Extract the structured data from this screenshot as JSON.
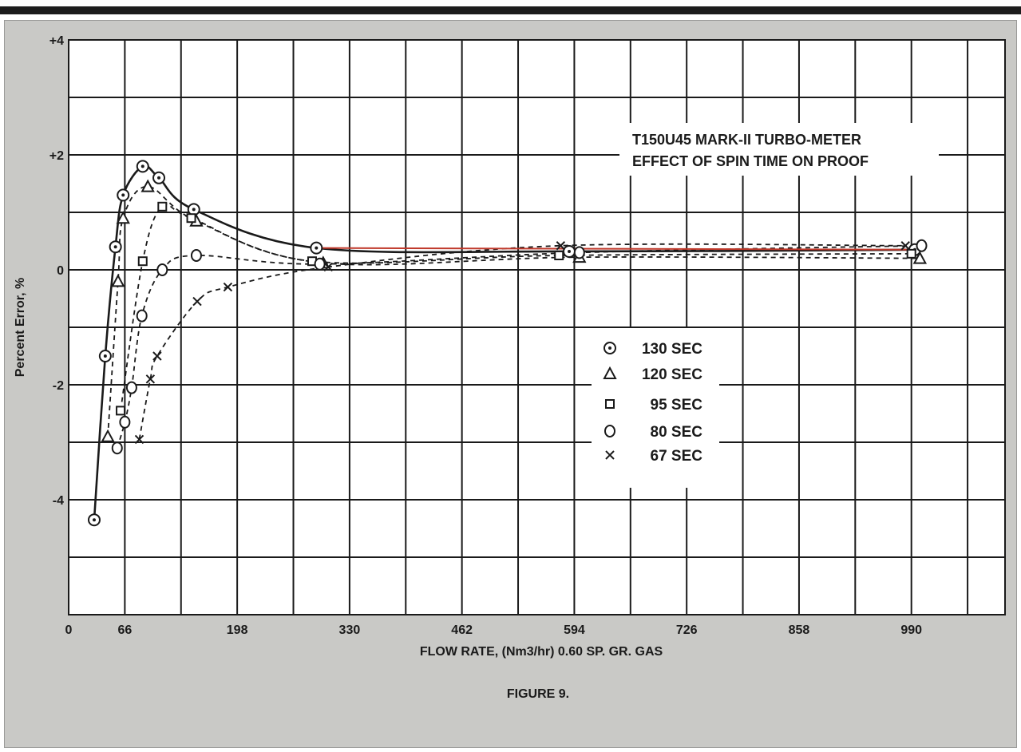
{
  "figure_caption": "FIGURE 9.",
  "colors": {
    "panel": "#c9c9c6",
    "plot_bg": "#ffffff",
    "grid": "#1a1a1a",
    "curve": "#1a1a1a",
    "reference_line": "#c0392b"
  },
  "chart_data": {
    "type": "line",
    "title": "T150U45 MARK-II TURBO-METER",
    "subtitle": "EFFECT OF SPIN TIME ON PROOF",
    "xlabel": "FLOW RATE, (Nm3/hr) 0.60 SP. GR. GAS",
    "ylabel": "Percent Error, %",
    "xlim": [
      0,
      1100
    ],
    "ylim": [
      -6,
      4
    ],
    "x_ticks": [
      0,
      66,
      198,
      330,
      462,
      594,
      726,
      858,
      990
    ],
    "x_tick_labels": [
      "0",
      "66",
      "198",
      "330",
      "462",
      "594",
      "726",
      "858",
      "990"
    ],
    "y_ticks": [
      4,
      2,
      0,
      -2,
      -4
    ],
    "y_tick_labels": [
      "+4",
      "+2",
      "0",
      "-2",
      "-4"
    ],
    "grid": true,
    "legend_position": "center-right",
    "series": [
      {
        "name": "130 SEC",
        "marker": "circle-dot",
        "line": "solid",
        "x": [
          30,
          43,
          55,
          64,
          87,
          106,
          147,
          291,
          588,
          994
        ],
        "y": [
          -4.35,
          -1.5,
          0.4,
          1.3,
          1.8,
          1.6,
          1.05,
          0.38,
          0.32,
          0.35
        ]
      },
      {
        "name": "120 SEC",
        "marker": "triangle",
        "line": "dashed",
        "x": [
          46,
          58,
          64,
          93,
          150,
          299,
          600,
          1000
        ],
        "y": [
          -2.9,
          -0.2,
          0.9,
          1.45,
          0.85,
          0.12,
          0.22,
          0.2
        ]
      },
      {
        "name": "95 SEC",
        "marker": "square",
        "line": "dashed",
        "x": [
          61,
          87,
          110,
          144,
          286,
          576,
          990
        ],
        "y": [
          -2.45,
          0.15,
          1.1,
          0.9,
          0.15,
          0.25,
          0.28
        ]
      },
      {
        "name": "80 SEC",
        "marker": "circle",
        "line": "dashed",
        "x": [
          57,
          66,
          74,
          86,
          110,
          150,
          295,
          600,
          1002
        ],
        "y": [
          -3.1,
          -2.65,
          -2.05,
          -0.8,
          0.0,
          0.25,
          0.1,
          0.3,
          0.42
        ]
      },
      {
        "name": "67 SEC",
        "marker": "x",
        "line": "dashed",
        "x": [
          83,
          96,
          104,
          151,
          187,
          305,
          578,
          983
        ],
        "y": [
          -2.95,
          -1.9,
          -1.5,
          -0.55,
          -0.3,
          0.05,
          0.42,
          0.42
        ]
      }
    ],
    "reference_line": {
      "x": [
        291,
        1002
      ],
      "y": [
        0.38,
        0.35
      ]
    }
  }
}
